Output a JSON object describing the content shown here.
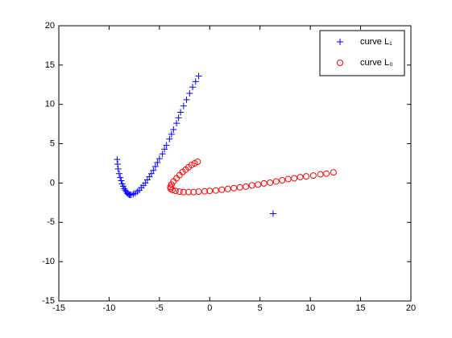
{
  "chart_data": {
    "type": "scatter",
    "xlim": [
      -15,
      20
    ],
    "ylim": [
      -15,
      20
    ],
    "xticks": [
      -15,
      -10,
      -5,
      0,
      5,
      10,
      15,
      20
    ],
    "yticks": [
      -15,
      -10,
      -5,
      0,
      5,
      10,
      15,
      20
    ],
    "legend": "upper right",
    "series": [
      {
        "name": "curve L₁",
        "color": "#0000ff",
        "marker": "plus",
        "x": [
          -9.2,
          -9.15,
          -9.1,
          -9.0,
          -8.9,
          -8.8,
          -8.7,
          -8.6,
          -8.5,
          -8.4,
          -8.3,
          -8.2,
          -8.1,
          -8.0,
          -7.9,
          -7.8,
          -7.6,
          -7.4,
          -7.2,
          -7.0,
          -6.8,
          -6.6,
          -6.4,
          -6.2,
          -6.0,
          -5.8,
          -5.6,
          -5.4,
          -5.2,
          -5.0,
          -4.7,
          -4.5,
          -4.3,
          -4.0,
          -3.8,
          -3.6,
          -3.3,
          -3.1,
          -2.9,
          -2.6,
          -2.3,
          -2.0,
          -1.7,
          -1.4,
          -1.1,
          6.3
        ],
        "values": [
          3.0,
          2.4,
          1.8,
          1.2,
          0.7,
          0.3,
          -0.1,
          -0.4,
          -0.7,
          -0.9,
          -1.1,
          -1.3,
          -1.4,
          -1.5,
          -1.5,
          -1.5,
          -1.4,
          -1.3,
          -1.1,
          -0.9,
          -0.6,
          -0.3,
          0.0,
          0.4,
          0.8,
          1.2,
          1.6,
          2.1,
          2.6,
          3.1,
          3.7,
          4.3,
          4.8,
          5.6,
          6.2,
          6.8,
          7.6,
          8.3,
          9.0,
          9.8,
          10.6,
          11.4,
          12.2,
          12.9,
          13.6,
          -3.9
        ]
      },
      {
        "name": "curve L₀",
        "color": "#ff0000",
        "marker": "circle",
        "x": [
          -1.2,
          -1.5,
          -1.8,
          -2.1,
          -2.4,
          -2.7,
          -3.0,
          -3.3,
          -3.6,
          -3.8,
          -3.9,
          -3.9,
          -3.7,
          -3.4,
          -3.0,
          -2.6,
          -2.1,
          -1.6,
          -1.1,
          -0.5,
          0.0,
          0.6,
          1.2,
          1.8,
          2.4,
          3.0,
          3.6,
          4.2,
          4.8,
          5.4,
          6.0,
          6.6,
          7.2,
          7.8,
          8.4,
          9.0,
          9.6,
          10.3,
          11.0,
          11.6,
          12.3
        ],
        "values": [
          2.7,
          2.5,
          2.3,
          2.0,
          1.7,
          1.4,
          1.0,
          0.6,
          0.2,
          -0.2,
          -0.5,
          -0.7,
          -0.9,
          -1.0,
          -1.1,
          -1.15,
          -1.15,
          -1.15,
          -1.1,
          -1.05,
          -1.0,
          -0.95,
          -0.85,
          -0.75,
          -0.65,
          -0.55,
          -0.45,
          -0.3,
          -0.2,
          -0.05,
          0.05,
          0.2,
          0.35,
          0.5,
          0.6,
          0.75,
          0.85,
          0.95,
          1.1,
          1.2,
          1.35
        ]
      }
    ]
  }
}
